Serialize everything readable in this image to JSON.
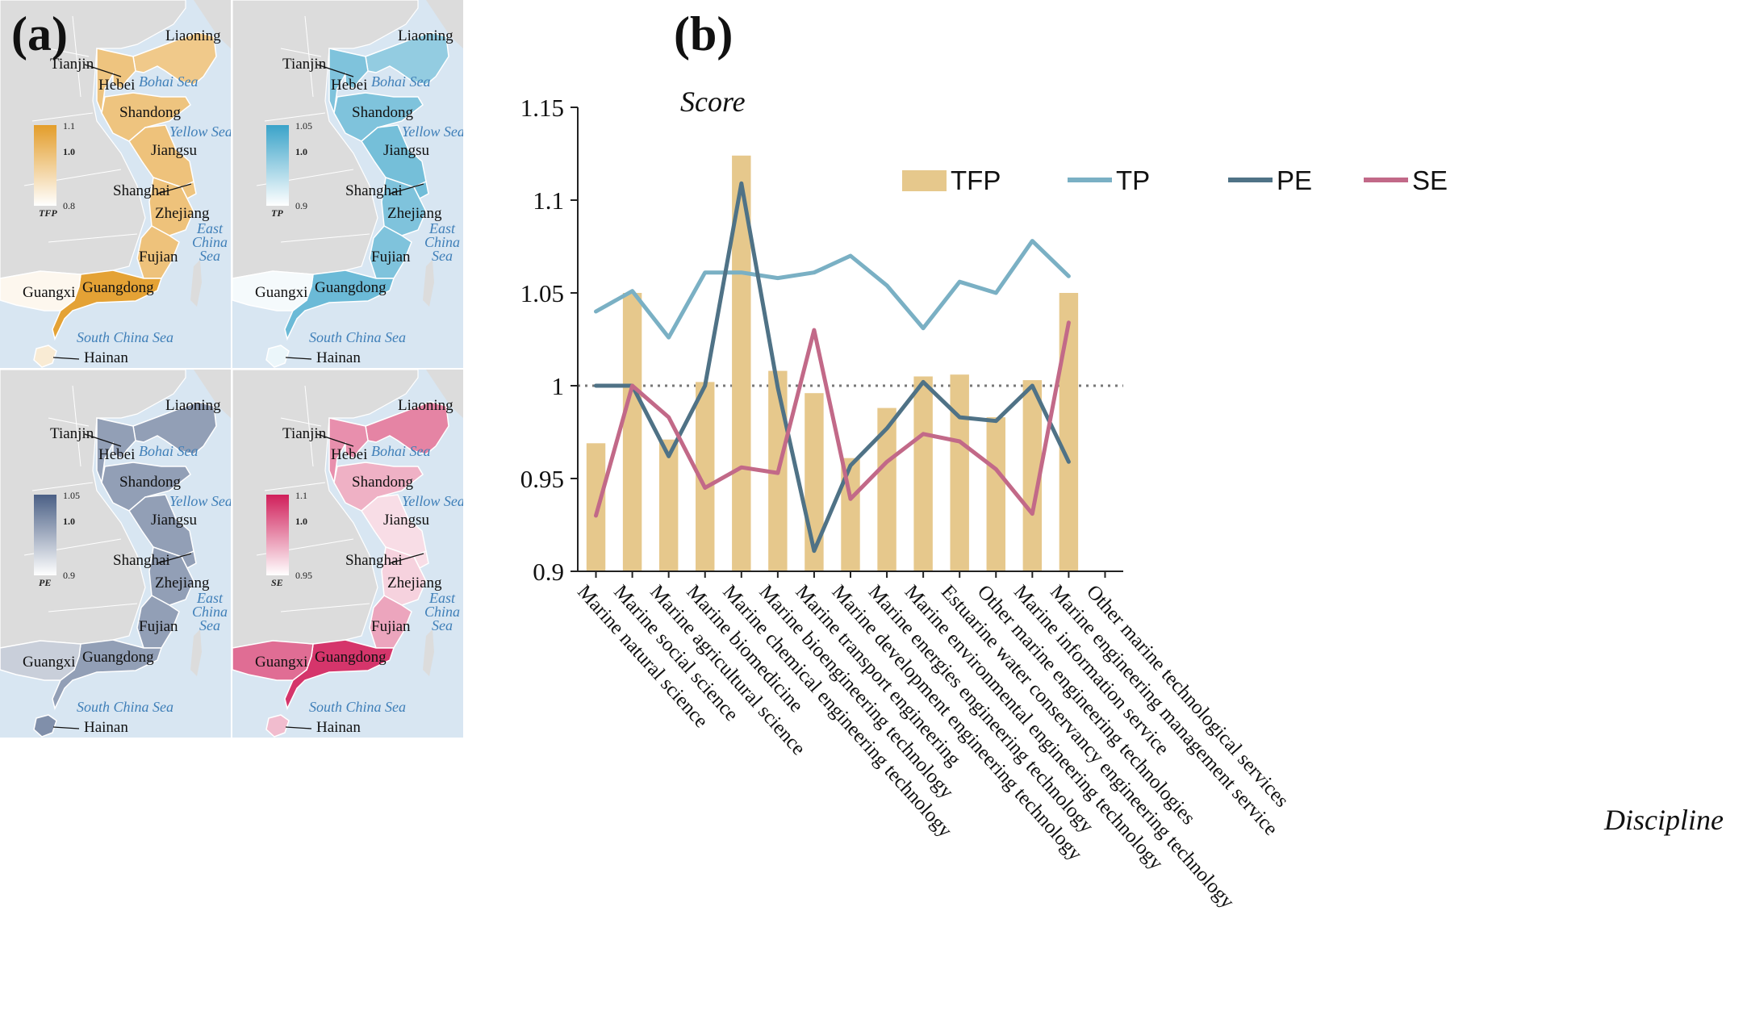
{
  "panel_a": {
    "label": "(a)",
    "provinces": [
      "Liaoning",
      "Tianjin",
      "Hebei",
      "Shandong",
      "Jiangsu",
      "Shanghai",
      "Zhejiang",
      "Fujian",
      "Guangdong",
      "Guangxi",
      "Hainan"
    ],
    "seas": {
      "bohai": "Bohai Sea",
      "yellow": "Yellow Sea",
      "east_china": [
        "East",
        "China",
        "Sea"
      ],
      "south_china": "South China Sea"
    },
    "maps": [
      {
        "index": "TFP",
        "legend_max": "1.1",
        "legend_mid": "1.0",
        "legend_min": "0.8",
        "color": "#e39d2a",
        "shades": {
          "Liaoning": 0.55,
          "Tianjin": 0.35,
          "Hebei": 0.6,
          "Shandong": 0.6,
          "Jiangsu": 0.62,
          "Shanghai": 0.6,
          "Zhejiang": 0.62,
          "Fujian": 0.62,
          "Guangdong": 0.95,
          "Guangxi": 0.08,
          "Hainan": 0.2
        }
      },
      {
        "index": "TP",
        "legend_max": "1.05",
        "legend_mid": "1.0",
        "legend_min": "0.9",
        "color": "#3aa3c9",
        "shades": {
          "Liaoning": 0.55,
          "Tianjin": 0.55,
          "Hebei": 0.65,
          "Shandong": 0.65,
          "Jiangsu": 0.7,
          "Shanghai": 0.72,
          "Zhejiang": 0.65,
          "Fujian": 0.65,
          "Guangdong": 0.75,
          "Guangxi": 0.05,
          "Hainan": 0.1
        }
      },
      {
        "index": "PE",
        "legend_max": "1.05",
        "legend_mid": "1.0",
        "legend_min": "0.9",
        "color": "#4a5f85",
        "shades": {
          "Liaoning": 0.6,
          "Tianjin": 0.3,
          "Hebei": 0.6,
          "Shandong": 0.6,
          "Jiangsu": 0.6,
          "Shanghai": 0.6,
          "Zhejiang": 0.6,
          "Fujian": 0.6,
          "Guangdong": 0.6,
          "Guangxi": 0.3,
          "Hainan": 0.7
        }
      },
      {
        "index": "SE",
        "legend_max": "1.1",
        "legend_mid": "1.0",
        "legend_min": "0.95",
        "color": "#d01f5a",
        "shades": {
          "Liaoning": 0.55,
          "Tianjin": 0.85,
          "Hebei": 0.5,
          "Shandong": 0.35,
          "Jiangsu": 0.15,
          "Shanghai": 0.15,
          "Zhejiang": 0.2,
          "Fujian": 0.4,
          "Guangdong": 0.9,
          "Guangxi": 0.65,
          "Hainan": 0.3
        }
      }
    ]
  },
  "panel_b": {
    "label": "(b)"
  },
  "chart_data": {
    "type": "bar",
    "title": "",
    "xlabel": "Discipline",
    "ylabel": "Score",
    "ylim": [
      0.9,
      1.15
    ],
    "yticks": [
      "0.9",
      "0.95",
      "1",
      "1.05",
      "1.1",
      "1.15"
    ],
    "reference_line": 1,
    "categories": [
      "Marine natural science",
      "Marine social science",
      "Marine agricultural science",
      "Marine biomedicine",
      "Marine chemical engineering technology",
      "Marine bioengineering technology",
      "Marine transport engineering",
      "Marine development engineering technology",
      "Marine energies engineering technology",
      "Marine environmental engineering technology",
      "Estuarine water conservancy engineering technology",
      "Other marine engineering technologies",
      "Marine information service",
      "Marine engineering management service",
      "Other marine technological services"
    ],
    "series": [
      {
        "name": "TFP",
        "type": "bar",
        "color": "#e6c88c",
        "values": [
          0.969,
          1.05,
          0.971,
          1.002,
          1.124,
          1.008,
          0.996,
          0.961,
          0.988,
          1.005,
          1.006,
          0.983,
          1.003,
          1.05,
          null
        ]
      },
      {
        "name": "TP",
        "type": "line",
        "color": "#7ab0c4",
        "values": [
          1.04,
          1.051,
          1.026,
          1.061,
          1.061,
          1.058,
          1.061,
          1.07,
          1.054,
          1.031,
          1.056,
          1.05,
          1.078,
          1.059,
          null
        ]
      },
      {
        "name": "PE",
        "type": "line",
        "color": "#4f7286",
        "values": [
          1.0,
          1.0,
          0.962,
          1.0,
          1.109,
          0.999,
          0.911,
          0.957,
          0.977,
          1.002,
          0.983,
          0.981,
          1.0,
          0.959,
          null
        ]
      },
      {
        "name": "SE",
        "type": "line",
        "color": "#c26988",
        "values": [
          0.93,
          1.0,
          0.983,
          0.945,
          0.956,
          0.953,
          1.03,
          0.939,
          0.959,
          0.974,
          0.97,
          0.955,
          0.931,
          1.034,
          null
        ]
      }
    ]
  }
}
